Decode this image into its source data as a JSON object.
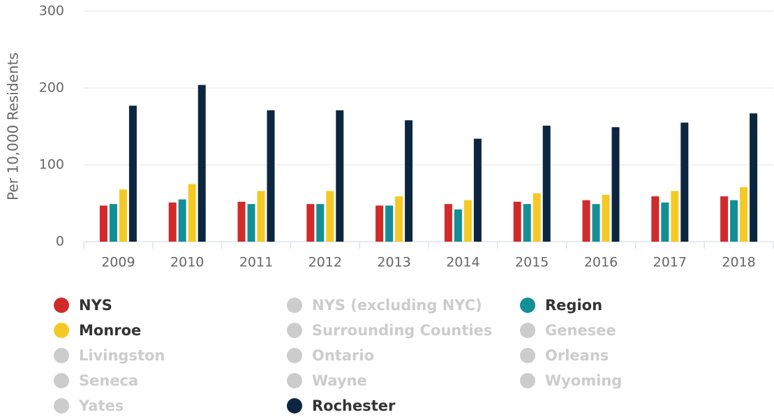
{
  "chart_data": {
    "type": "bar",
    "y_axis_label": "Per 10,000 Residents",
    "categories": [
      "2009",
      "2010",
      "2011",
      "2012",
      "2013",
      "2014",
      "2015",
      "2016",
      "2017",
      "2018"
    ],
    "series": [
      {
        "name": "NYS",
        "color": "#d12a2a",
        "visible": true,
        "values": [
          47,
          51,
          52,
          49,
          47,
          49,
          52,
          54,
          59,
          59
        ]
      },
      {
        "name": "NYS (excluding NYC)",
        "color": "#cccccc",
        "visible": false,
        "values": [
          null,
          null,
          null,
          null,
          null,
          null,
          null,
          null,
          null,
          null
        ]
      },
      {
        "name": "Region",
        "color": "#138f96",
        "visible": true,
        "values": [
          49,
          55,
          49,
          49,
          47,
          42,
          49,
          49,
          51,
          54
        ]
      },
      {
        "name": "Monroe",
        "color": "#f5c924",
        "visible": true,
        "values": [
          68,
          75,
          66,
          66,
          59,
          54,
          63,
          61,
          66,
          71
        ]
      },
      {
        "name": "Surrounding Counties",
        "color": "#cccccc",
        "visible": false,
        "values": [
          null,
          null,
          null,
          null,
          null,
          null,
          null,
          null,
          null,
          null
        ]
      },
      {
        "name": "Genesee",
        "color": "#cccccc",
        "visible": false,
        "values": [
          null,
          null,
          null,
          null,
          null,
          null,
          null,
          null,
          null,
          null
        ]
      },
      {
        "name": "Livingston",
        "color": "#cccccc",
        "visible": false,
        "values": [
          null,
          null,
          null,
          null,
          null,
          null,
          null,
          null,
          null,
          null
        ]
      },
      {
        "name": "Ontario",
        "color": "#cccccc",
        "visible": false,
        "values": [
          null,
          null,
          null,
          null,
          null,
          null,
          null,
          null,
          null,
          null
        ]
      },
      {
        "name": "Orleans",
        "color": "#cccccc",
        "visible": false,
        "values": [
          null,
          null,
          null,
          null,
          null,
          null,
          null,
          null,
          null,
          null
        ]
      },
      {
        "name": "Seneca",
        "color": "#cccccc",
        "visible": false,
        "values": [
          null,
          null,
          null,
          null,
          null,
          null,
          null,
          null,
          null,
          null
        ]
      },
      {
        "name": "Wayne",
        "color": "#cccccc",
        "visible": false,
        "values": [
          null,
          null,
          null,
          null,
          null,
          null,
          null,
          null,
          null,
          null
        ]
      },
      {
        "name": "Wyoming",
        "color": "#cccccc",
        "visible": false,
        "values": [
          null,
          null,
          null,
          null,
          null,
          null,
          null,
          null,
          null,
          null
        ]
      },
      {
        "name": "Yates",
        "color": "#cccccc",
        "visible": false,
        "values": [
          null,
          null,
          null,
          null,
          null,
          null,
          null,
          null,
          null,
          null
        ]
      },
      {
        "name": "Rochester",
        "color": "#0d2640",
        "visible": true,
        "values": [
          177,
          204,
          171,
          171,
          158,
          134,
          151,
          149,
          155,
          167
        ]
      }
    ],
    "ylim": [
      0,
      300
    ],
    "yticks": [
      0,
      100,
      200,
      300
    ],
    "grid": true,
    "legend": "bottom"
  }
}
